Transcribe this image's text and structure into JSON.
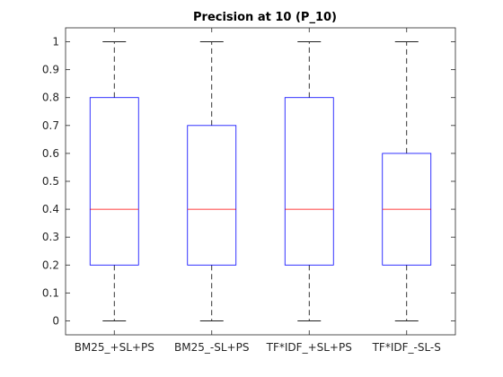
{
  "chart_data": {
    "type": "boxplot",
    "title": "Precision at 10 (P_10)",
    "xlabel": "",
    "ylabel": "",
    "ylim": [
      -0.05,
      1.05
    ],
    "yticks": [
      0,
      0.1,
      0.2,
      0.3,
      0.4,
      0.5,
      0.6,
      0.7,
      0.8,
      0.9,
      1
    ],
    "ytick_labels": [
      "0",
      "0.1",
      "0.2",
      "0.3",
      "0.4",
      "0.5",
      "0.6",
      "0.7",
      "0.8",
      "0.9",
      "1"
    ],
    "categories": [
      "BM25_+SL+PS",
      "BM25_-SL+PS",
      "TF*IDF_+SL+PS",
      "TF*IDF_-SL-S"
    ],
    "boxes": [
      {
        "min": 0,
        "q1": 0.2,
        "median": 0.4,
        "q3": 0.8,
        "max": 1
      },
      {
        "min": 0,
        "q1": 0.2,
        "median": 0.4,
        "q3": 0.7,
        "max": 1
      },
      {
        "min": 0,
        "q1": 0.2,
        "median": 0.4,
        "q3": 0.8,
        "max": 1
      },
      {
        "min": 0,
        "q1": 0.2,
        "median": 0.4,
        "q3": 0.6,
        "max": 1
      }
    ],
    "grid": false,
    "legend": "none",
    "colors": {
      "box": "#0000ff",
      "median": "#ff0000",
      "whisker": "#000000",
      "axes": "#262626"
    }
  }
}
